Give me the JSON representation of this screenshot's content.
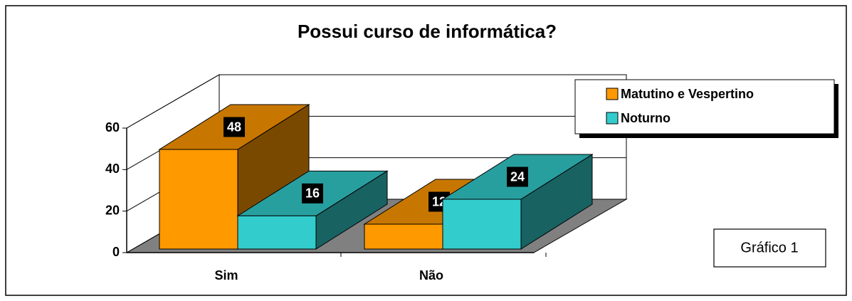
{
  "chart_data": {
    "type": "bar3d",
    "title": "Possui curso de informática?",
    "categories": [
      "Sim",
      "Não"
    ],
    "series": [
      {
        "name": "Matutino e Vespertino",
        "color": "#FF9900",
        "values": [
          48,
          12
        ]
      },
      {
        "name": "Noturno",
        "color": "#33CCCC",
        "values": [
          16,
          24
        ]
      }
    ],
    "ylim": [
      0,
      60
    ],
    "yticks": [
      0,
      20,
      40,
      60
    ],
    "grid": true,
    "legend": "upper right",
    "annotation": "Gráfico 1"
  }
}
